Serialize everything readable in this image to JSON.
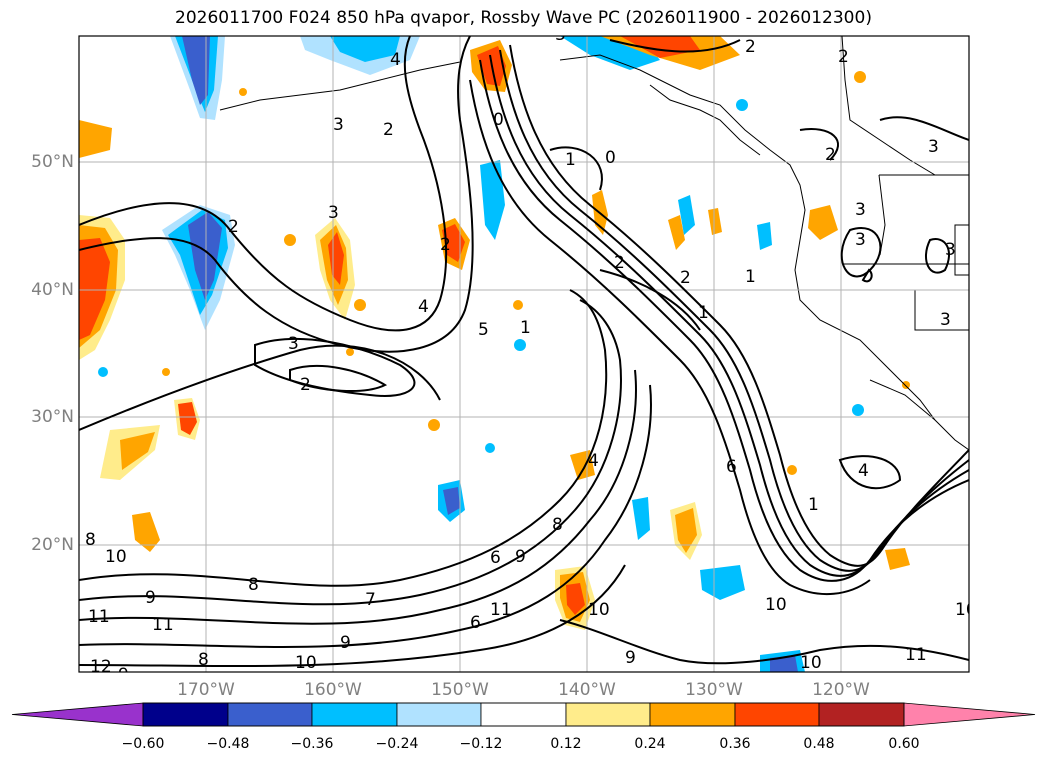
{
  "title": "2026011700 F024 850 hPa qvapor, Rossby Wave PC (2026011900 - 2026012300)",
  "lat_labels": [
    "50°N",
    "40°N",
    "30°N",
    "20°N"
  ],
  "lon_labels": [
    "170°W",
    "160°W",
    "150°W",
    "140°W",
    "130°W",
    "120°W"
  ],
  "colorbar": {
    "ticks": [
      "−0.60",
      "−0.48",
      "−0.36",
      "−0.24",
      "−0.12",
      "0.12",
      "0.24",
      "0.36",
      "0.48",
      "0.60"
    ],
    "colors": [
      "#9932CC",
      "#00008B",
      "#3A5FCD",
      "#00BFFF",
      "#B0E2FF",
      "#FFFFFF",
      "#FFEC8B",
      "#FFA500",
      "#FF4500",
      "#B22222",
      "#FF82AB"
    ]
  },
  "contour_labels": [
    "2",
    "2",
    "3",
    "3",
    "2",
    "3",
    "1",
    "0",
    "0",
    "2",
    "2",
    "4",
    "3",
    "2",
    "1",
    "2",
    "3",
    "5",
    "4",
    "3",
    "2",
    "4",
    "1",
    "6",
    "8",
    "9",
    "10",
    "11",
    "10",
    "11",
    "9",
    "10",
    "11",
    "10",
    "11",
    "12",
    "10",
    "8",
    "9",
    "9",
    "7",
    "8",
    "10",
    "9",
    "8",
    "6",
    "6",
    "4",
    "1",
    "3",
    "3",
    "2",
    "1",
    "3"
  ]
}
